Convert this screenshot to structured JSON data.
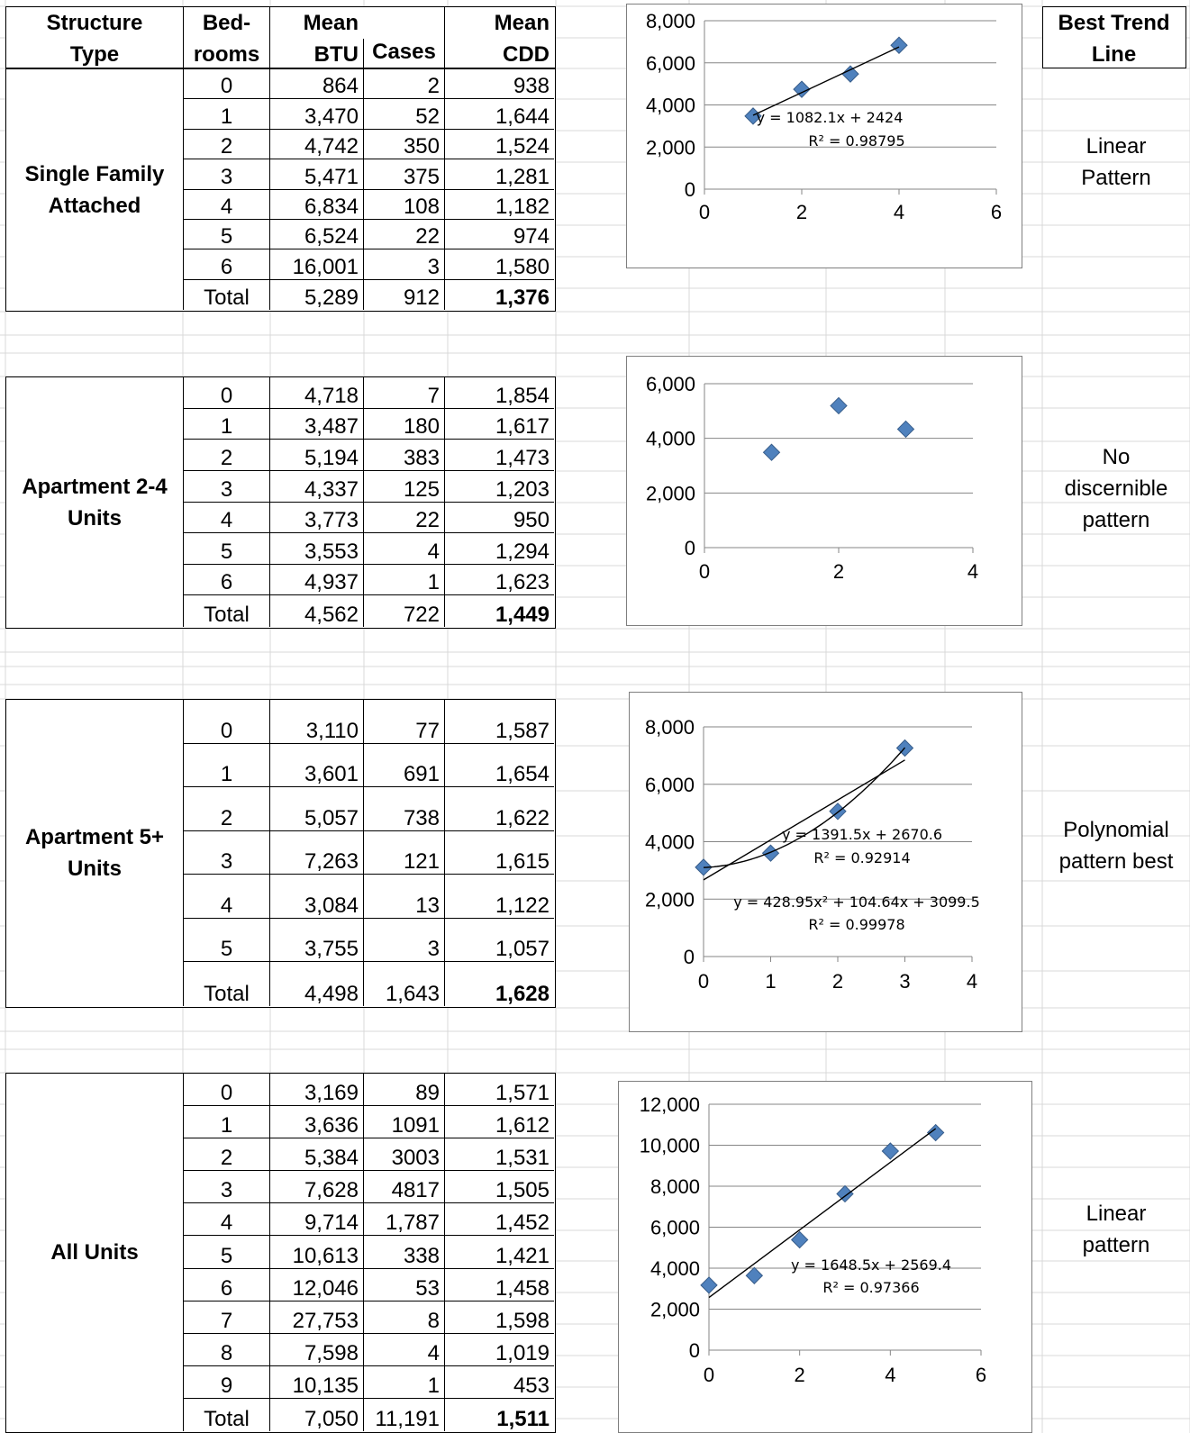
{
  "header": {
    "structure_type": "Structure\nType",
    "bedrooms": "Bed-\nrooms",
    "mean_btu": "Mean\nBTU",
    "cases": "Cases",
    "mean_cdd": "Mean\nCDD",
    "best_trend_line": "Best Trend\nLine"
  },
  "groups": [
    {
      "type": "Single Family\nAttached",
      "trend": "Linear\nPattern",
      "rows": [
        {
          "bed": "0",
          "btu": "864",
          "cases": "2",
          "cdd": "938"
        },
        {
          "bed": "1",
          "btu": "3,470",
          "cases": "52",
          "cdd": "1,644"
        },
        {
          "bed": "2",
          "btu": "4,742",
          "cases": "350",
          "cdd": "1,524"
        },
        {
          "bed": "3",
          "btu": "5,471",
          "cases": "375",
          "cdd": "1,281"
        },
        {
          "bed": "4",
          "btu": "6,834",
          "cases": "108",
          "cdd": "1,182"
        },
        {
          "bed": "5",
          "btu": "6,524",
          "cases": "22",
          "cdd": "974"
        },
        {
          "bed": "6",
          "btu": "16,001",
          "cases": "3",
          "cdd": "1,580"
        }
      ],
      "total": {
        "bed": "Total",
        "btu": "5,289",
        "cases": "912",
        "cdd": "1,376"
      }
    },
    {
      "type": "Apartment 2-4\nUnits",
      "trend": "No\ndiscernible\npattern",
      "rows": [
        {
          "bed": "0",
          "btu": "4,718",
          "cases": "7",
          "cdd": "1,854"
        },
        {
          "bed": "1",
          "btu": "3,487",
          "cases": "180",
          "cdd": "1,617"
        },
        {
          "bed": "2",
          "btu": "5,194",
          "cases": "383",
          "cdd": "1,473"
        },
        {
          "bed": "3",
          "btu": "4,337",
          "cases": "125",
          "cdd": "1,203"
        },
        {
          "bed": "4",
          "btu": "3,773",
          "cases": "22",
          "cdd": "950"
        },
        {
          "bed": "5",
          "btu": "3,553",
          "cases": "4",
          "cdd": "1,294"
        },
        {
          "bed": "6",
          "btu": "4,937",
          "cases": "1",
          "cdd": "1,623"
        }
      ],
      "total": {
        "bed": "Total",
        "btu": "4,562",
        "cases": "722",
        "cdd": "1,449"
      }
    },
    {
      "type": "Apartment 5+\nUnits",
      "trend": "Polynomial\npattern best",
      "rows": [
        {
          "bed": "0",
          "btu": "3,110",
          "cases": "77",
          "cdd": "1,587"
        },
        {
          "bed": "1",
          "btu": "3,601",
          "cases": "691",
          "cdd": "1,654"
        },
        {
          "bed": "2",
          "btu": "5,057",
          "cases": "738",
          "cdd": "1,622"
        },
        {
          "bed": "3",
          "btu": "7,263",
          "cases": "121",
          "cdd": "1,615"
        },
        {
          "bed": "4",
          "btu": "3,084",
          "cases": "13",
          "cdd": "1,122"
        },
        {
          "bed": "5",
          "btu": "3,755",
          "cases": "3",
          "cdd": "1,057"
        }
      ],
      "total": {
        "bed": "Total",
        "btu": "4,498",
        "cases": "1,643",
        "cdd": "1,628"
      }
    },
    {
      "type": "All Units",
      "trend": "Linear\npattern",
      "rows": [
        {
          "bed": "0",
          "btu": "3,169",
          "cases": "89",
          "cdd": "1,571"
        },
        {
          "bed": "1",
          "btu": "3,636",
          "cases": "1091",
          "cdd": "1,612"
        },
        {
          "bed": "2",
          "btu": "5,384",
          "cases": "3003",
          "cdd": "1,531"
        },
        {
          "bed": "3",
          "btu": "7,628",
          "cases": "4817",
          "cdd": "1,505"
        },
        {
          "bed": "4",
          "btu": "9,714",
          "cases": "1,787",
          "cdd": "1,452"
        },
        {
          "bed": "5",
          "btu": "10,613",
          "cases": "338",
          "cdd": "1,421"
        },
        {
          "bed": "6",
          "btu": "12,046",
          "cases": "53",
          "cdd": "1,458"
        },
        {
          "bed": "7",
          "btu": "27,753",
          "cases": "8",
          "cdd": "1,598"
        },
        {
          "bed": "8",
          "btu": "7,598",
          "cases": "4",
          "cdd": "1,019"
        },
        {
          "bed": "9",
          "btu": "10,135",
          "cases": "1",
          "cdd": "453"
        }
      ],
      "total": {
        "bed": "Total",
        "btu": "7,050",
        "cases": "11,191",
        "cdd": "1,511"
      }
    }
  ],
  "chart_data": [
    {
      "type": "scatter",
      "x": [
        1,
        2,
        3,
        4
      ],
      "y": [
        3470,
        4742,
        5471,
        6834
      ],
      "xlim": [
        0,
        6
      ],
      "xticks": [
        0,
        2,
        4,
        6
      ],
      "ylim": [
        0,
        8000
      ],
      "yticks": [
        0,
        2000,
        4000,
        6000,
        8000
      ],
      "grid": "horizontal",
      "marker_color": "#4f81bd",
      "trendlines": [
        {
          "kind": "linear",
          "coef": [
            1082.1,
            2424
          ],
          "x_range": [
            1,
            4
          ],
          "equation": "y = 1082.1x + 2424",
          "r2": "R² = 0.98795"
        }
      ]
    },
    {
      "type": "scatter",
      "x": [
        1,
        2,
        3
      ],
      "y": [
        3487,
        5194,
        4337
      ],
      "xlim": [
        0,
        4
      ],
      "xticks": [
        0,
        2,
        4
      ],
      "ylim": [
        0,
        6000
      ],
      "yticks": [
        0,
        2000,
        4000,
        6000
      ],
      "grid": "horizontal",
      "marker_color": "#4f81bd",
      "trendlines": []
    },
    {
      "type": "scatter",
      "x": [
        0,
        1,
        2,
        3
      ],
      "y": [
        3110,
        3601,
        5057,
        7263
      ],
      "xlim": [
        0,
        4
      ],
      "xticks": [
        0,
        1,
        2,
        3,
        4
      ],
      "ylim": [
        0,
        8000
      ],
      "yticks": [
        0,
        2000,
        4000,
        6000,
        8000
      ],
      "grid": "horizontal",
      "marker_color": "#4f81bd",
      "trendlines": [
        {
          "kind": "linear",
          "coef": [
            1391.5,
            2670.6
          ],
          "x_range": [
            0,
            3
          ],
          "equation": "y = 1391.5x + 2670.6",
          "r2": "R² = 0.92914"
        },
        {
          "kind": "poly2",
          "coef": [
            428.95,
            104.64,
            3099.5
          ],
          "x_range": [
            0,
            3
          ],
          "equation": "y = 428.95x² + 104.64x + 3099.5",
          "r2": "R² = 0.99978"
        }
      ]
    },
    {
      "type": "scatter",
      "x": [
        0,
        1,
        2,
        3,
        4,
        5
      ],
      "y": [
        3169,
        3636,
        5384,
        7628,
        9714,
        10613
      ],
      "xlim": [
        0,
        6
      ],
      "xticks": [
        0,
        2,
        4,
        6
      ],
      "ylim": [
        0,
        12000
      ],
      "yticks": [
        0,
        2000,
        4000,
        6000,
        8000,
        10000,
        12000
      ],
      "grid": "horizontal",
      "marker_color": "#4f81bd",
      "trendlines": [
        {
          "kind": "linear",
          "coef": [
            1648.5,
            2569.4
          ],
          "x_range": [
            0,
            5
          ],
          "equation": "y = 1648.5x + 2569.4",
          "r2": "R² = 0.97366"
        }
      ]
    }
  ]
}
